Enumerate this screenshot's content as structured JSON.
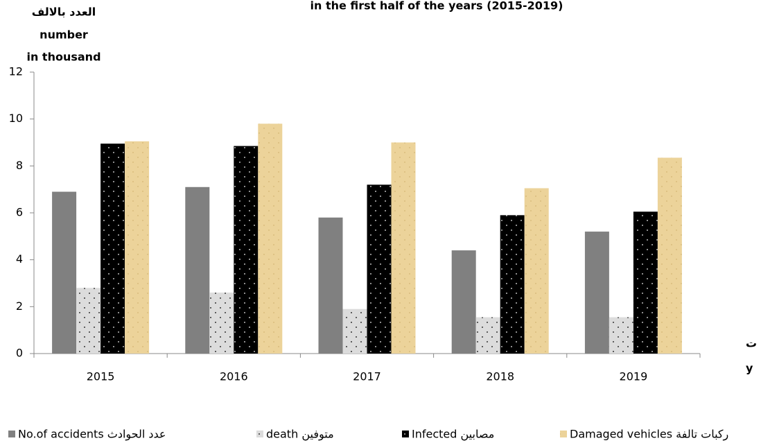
{
  "chart_data": {
    "type": "bar",
    "title": "in the first half of the years (2015-2019)",
    "y_label": [
      "العدد بالالف",
      "number",
      "in thousand"
    ],
    "x_label": [
      "ت",
      "y"
    ],
    "categories": [
      "2015",
      "2016",
      "2017",
      "2018",
      "2019"
    ],
    "series": [
      {
        "name": "No.of accidents عدد الحوادث",
        "color": "#808080",
        "values": [
          6.9,
          7.1,
          5.8,
          4.4,
          5.2
        ]
      },
      {
        "name": "death متوفين",
        "color": "#dcdcdc",
        "values": [
          2.8,
          2.6,
          1.9,
          1.55,
          1.55
        ]
      },
      {
        "name": "Infected مصابين",
        "color": "#000000",
        "values": [
          8.95,
          8.85,
          7.2,
          5.9,
          6.05
        ]
      },
      {
        "name": "Damaged vehicles ركبات تالفة",
        "color": "#ecd39a",
        "values": [
          9.05,
          9.8,
          9.0,
          7.05,
          8.35
        ]
      }
    ],
    "ylim": [
      0,
      12
    ],
    "yticks": [
      0,
      2,
      4,
      6,
      8,
      10,
      12
    ],
    "grid": false
  }
}
